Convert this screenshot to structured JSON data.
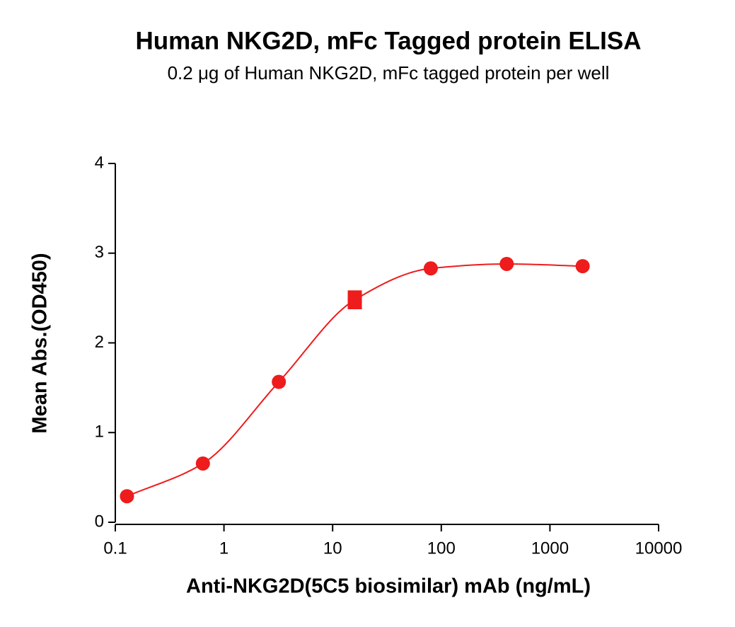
{
  "chart_data": {
    "type": "scatter",
    "title": "Human NKG2D, mFc Tagged protein ELISA",
    "subtitle": "0.2 μg of Human NKG2D, mFc tagged protein per well",
    "x_label": "Anti-NKG2D(5C5 biosimilar) mAb (ng/mL)",
    "y_label": "Mean Abs.(OD450)",
    "x": [
      0.128,
      0.64,
      3.2,
      16,
      80,
      400,
      2000
    ],
    "values": [
      0.29,
      0.655,
      1.565,
      2.48,
      2.83,
      2.88,
      2.855
    ],
    "errors": [
      null,
      null,
      null,
      0.05,
      null,
      null,
      null
    ],
    "color": "#ee1c1c",
    "xlog": true,
    "xlim": [
      0.1,
      10000
    ],
    "xticks": [
      0.1,
      1,
      10,
      100,
      1000,
      10000
    ],
    "ylim": [
      0,
      4
    ],
    "yticks": [
      0,
      1,
      2,
      3,
      4
    ],
    "fit_curve": true
  }
}
